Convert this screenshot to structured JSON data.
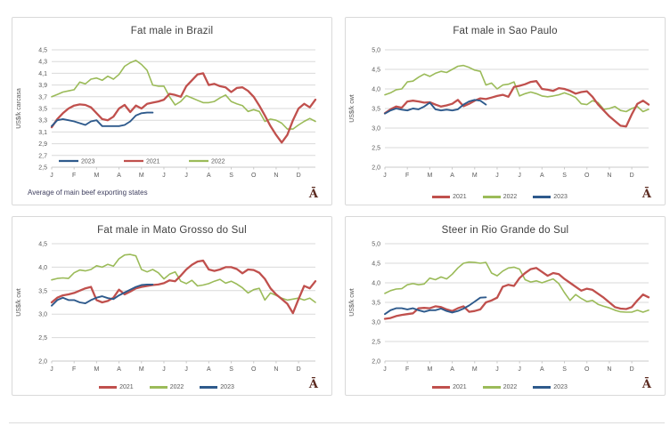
{
  "colors": {
    "red": "#C0504D",
    "green": "#9BBB59",
    "blue": "#2E5A8C",
    "grid": "#DADADA",
    "axis": "#C9C9C9",
    "axis_text": "#595959",
    "title_text": "#404040",
    "footnote_text": "#3F3F5F",
    "logo": "#5B2A20"
  },
  "chart_data": [
    {
      "type": "line",
      "title": "Fat male in Brazil",
      "ylabel": "US$/k carcasa",
      "footnote": "Average  of main beef exporting states",
      "logo_glyph": "Ā",
      "x_labels": [
        "J",
        "F",
        "M",
        "A",
        "M",
        "J",
        "J",
        "A",
        "S",
        "O",
        "N",
        "D"
      ],
      "ylim": [
        2.5,
        4.5
      ],
      "ytick_labels": [
        "4,5",
        "4,3",
        "4,1",
        "3,9",
        "3,7",
        "3,5",
        "3,3",
        "3,1",
        "2,9",
        "2,7",
        "2,5"
      ],
      "legend_position": "inside",
      "legend": [
        {
          "label": "2023",
          "color": "blue"
        },
        {
          "label": "2021",
          "color": "red"
        },
        {
          "label": "2022",
          "color": "green"
        }
      ],
      "series": [
        {
          "name": "2022",
          "color": "green",
          "width": 1.6,
          "values": [
            3.7,
            3.74,
            3.78,
            3.8,
            3.82,
            3.95,
            3.92,
            4.0,
            4.02,
            3.98,
            4.05,
            4.0,
            4.08,
            4.22,
            4.28,
            4.32,
            4.25,
            4.15,
            3.9,
            3.88,
            3.88,
            3.7,
            3.56,
            3.62,
            3.72,
            3.68,
            3.64,
            3.6,
            3.6,
            3.62,
            3.68,
            3.73,
            3.62,
            3.58,
            3.55,
            3.45,
            3.48,
            3.45,
            3.28,
            3.32,
            3.3,
            3.25,
            3.15,
            3.15,
            3.22,
            3.28,
            3.33,
            3.28
          ]
        },
        {
          "name": "2021",
          "color": "red",
          "width": 2.3,
          "values": [
            3.18,
            3.32,
            3.42,
            3.5,
            3.55,
            3.57,
            3.56,
            3.52,
            3.42,
            3.32,
            3.3,
            3.36,
            3.5,
            3.56,
            3.44,
            3.55,
            3.5,
            3.58,
            3.6,
            3.62,
            3.65,
            3.75,
            3.73,
            3.7,
            3.88,
            3.98,
            4.08,
            4.1,
            3.9,
            3.92,
            3.88,
            3.86,
            3.78,
            3.85,
            3.86,
            3.8,
            3.7,
            3.55,
            3.38,
            3.2,
            3.05,
            2.92,
            3.05,
            3.3,
            3.5,
            3.58,
            3.52,
            3.65
          ]
        },
        {
          "name": "2023",
          "color": "blue",
          "width": 1.9,
          "values": [
            3.2,
            3.3,
            3.32,
            3.3,
            3.28,
            3.25,
            3.22,
            3.28,
            3.3,
            3.2,
            3.2,
            3.2,
            3.2,
            3.22,
            3.28,
            3.38,
            3.42,
            3.43,
            3.43
          ]
        }
      ]
    },
    {
      "type": "line",
      "title": "Fat male in Sao Paulo",
      "ylabel": "US$/k cwt",
      "logo_glyph": "Ā",
      "x_labels": [
        "J",
        "F",
        "M",
        "A",
        "M",
        "J",
        "J",
        "A",
        "S",
        "O",
        "N",
        "D"
      ],
      "ylim": [
        2.0,
        5.0
      ],
      "ytick_labels": [
        "5,0",
        "4,5",
        "4,0",
        "3,5",
        "3,0",
        "2,5",
        "2,0"
      ],
      "legend_position": "below",
      "legend": [
        {
          "label": "2021",
          "color": "red"
        },
        {
          "label": "2022",
          "color": "green"
        },
        {
          "label": "2023",
          "color": "blue"
        }
      ],
      "series": [
        {
          "name": "2022",
          "color": "green",
          "width": 1.6,
          "values": [
            3.85,
            3.9,
            3.98,
            4.0,
            4.18,
            4.2,
            4.3,
            4.38,
            4.32,
            4.4,
            4.45,
            4.42,
            4.5,
            4.58,
            4.6,
            4.55,
            4.48,
            4.45,
            4.1,
            4.15,
            4.0,
            4.1,
            4.12,
            4.18,
            3.82,
            3.88,
            3.92,
            3.88,
            3.82,
            3.8,
            3.82,
            3.85,
            3.9,
            3.85,
            3.78,
            3.62,
            3.6,
            3.7,
            3.65,
            3.48,
            3.5,
            3.55,
            3.45,
            3.42,
            3.5,
            3.55,
            3.42,
            3.48
          ]
        },
        {
          "name": "2021",
          "color": "red",
          "width": 2.3,
          "values": [
            3.38,
            3.48,
            3.55,
            3.52,
            3.68,
            3.7,
            3.68,
            3.65,
            3.66,
            3.6,
            3.55,
            3.58,
            3.62,
            3.72,
            3.56,
            3.62,
            3.7,
            3.76,
            3.74,
            3.78,
            3.82,
            3.85,
            3.8,
            4.05,
            4.08,
            4.12,
            4.18,
            4.2,
            4.0,
            3.98,
            3.95,
            4.02,
            4.0,
            3.95,
            3.88,
            3.92,
            3.94,
            3.8,
            3.6,
            3.45,
            3.3,
            3.18,
            3.06,
            3.04,
            3.35,
            3.62,
            3.7,
            3.6
          ]
        },
        {
          "name": "2023",
          "color": "blue",
          "width": 1.9,
          "values": [
            3.37,
            3.45,
            3.5,
            3.47,
            3.45,
            3.5,
            3.48,
            3.55,
            3.65,
            3.48,
            3.45,
            3.47,
            3.45,
            3.48,
            3.6,
            3.68,
            3.72,
            3.7,
            3.6
          ]
        }
      ]
    },
    {
      "type": "line",
      "title": "Fat male in Mato Grosso do Sul",
      "ylabel": "US$/k cwt",
      "logo_glyph": "Ā",
      "x_labels": [
        "J",
        "F",
        "M",
        "A",
        "M",
        "J",
        "J",
        "A",
        "S",
        "O",
        "N",
        "D"
      ],
      "ylim": [
        2.0,
        4.5
      ],
      "ytick_labels": [
        "4,5",
        "4,0",
        "3,5",
        "3,0",
        "2,5",
        "2,0"
      ],
      "legend_position": "below",
      "legend": [
        {
          "label": "2021",
          "color": "red"
        },
        {
          "label": "2022",
          "color": "green"
        },
        {
          "label": "2023",
          "color": "blue"
        }
      ],
      "series": [
        {
          "name": "2022",
          "color": "green",
          "width": 1.6,
          "values": [
            3.73,
            3.76,
            3.77,
            3.76,
            3.88,
            3.94,
            3.92,
            3.95,
            4.03,
            4.0,
            4.06,
            4.02,
            4.18,
            4.26,
            4.27,
            4.24,
            3.95,
            3.9,
            3.95,
            3.88,
            3.75,
            3.85,
            3.9,
            3.7,
            3.65,
            3.72,
            3.6,
            3.62,
            3.65,
            3.7,
            3.74,
            3.66,
            3.7,
            3.64,
            3.56,
            3.45,
            3.52,
            3.55,
            3.3,
            3.45,
            3.4,
            3.34,
            3.3,
            3.32,
            3.34,
            3.3,
            3.34,
            3.25
          ]
        },
        {
          "name": "2021",
          "color": "red",
          "width": 2.3,
          "values": [
            3.25,
            3.35,
            3.4,
            3.42,
            3.45,
            3.5,
            3.55,
            3.58,
            3.3,
            3.25,
            3.28,
            3.35,
            3.52,
            3.42,
            3.48,
            3.55,
            3.58,
            3.6,
            3.62,
            3.63,
            3.66,
            3.72,
            3.7,
            3.82,
            3.95,
            4.05,
            4.12,
            4.14,
            3.95,
            3.92,
            3.95,
            4.0,
            4.0,
            3.96,
            3.87,
            3.95,
            3.94,
            3.88,
            3.75,
            3.55,
            3.42,
            3.32,
            3.22,
            3.02,
            3.32,
            3.6,
            3.55,
            3.7
          ]
        },
        {
          "name": "2023",
          "color": "blue",
          "width": 1.9,
          "values": [
            3.18,
            3.3,
            3.35,
            3.3,
            3.3,
            3.25,
            3.23,
            3.3,
            3.35,
            3.38,
            3.34,
            3.32,
            3.4,
            3.46,
            3.52,
            3.58,
            3.62,
            3.63,
            3.63
          ]
        }
      ]
    },
    {
      "type": "line",
      "title": "Steer  in Rio Grande do Sul",
      "ylabel": "US$/k cwt",
      "logo_glyph": "Ā",
      "x_labels": [
        "J",
        "F",
        "M",
        "A",
        "M",
        "J",
        "J",
        "A",
        "S",
        "O",
        "N",
        "D"
      ],
      "ylim": [
        2.0,
        5.0
      ],
      "ytick_labels": [
        "5,0",
        "4,5",
        "4,0",
        "3,5",
        "3,0",
        "2,5",
        "2,0"
      ],
      "legend_position": "below",
      "legend": [
        {
          "label": "2021",
          "color": "red"
        },
        {
          "label": "2022",
          "color": "green"
        },
        {
          "label": "2023",
          "color": "blue"
        }
      ],
      "series": [
        {
          "name": "2022",
          "color": "green",
          "width": 1.6,
          "values": [
            3.73,
            3.8,
            3.84,
            3.85,
            3.95,
            3.98,
            3.95,
            3.97,
            4.12,
            4.08,
            4.15,
            4.1,
            4.22,
            4.38,
            4.5,
            4.53,
            4.52,
            4.5,
            4.52,
            4.25,
            4.18,
            4.3,
            4.38,
            4.4,
            4.35,
            4.08,
            4.02,
            4.05,
            4.0,
            4.05,
            4.1,
            3.98,
            3.75,
            3.55,
            3.7,
            3.6,
            3.52,
            3.55,
            3.45,
            3.4,
            3.36,
            3.3,
            3.26,
            3.25,
            3.25,
            3.3,
            3.25,
            3.3
          ]
        },
        {
          "name": "2021",
          "color": "red",
          "width": 2.3,
          "values": [
            3.08,
            3.1,
            3.15,
            3.18,
            3.2,
            3.22,
            3.35,
            3.36,
            3.35,
            3.4,
            3.38,
            3.32,
            3.28,
            3.35,
            3.4,
            3.26,
            3.28,
            3.32,
            3.5,
            3.55,
            3.62,
            3.9,
            3.95,
            3.92,
            4.12,
            4.25,
            4.35,
            4.38,
            4.28,
            4.18,
            4.25,
            4.22,
            4.1,
            4.0,
            3.9,
            3.8,
            3.85,
            3.82,
            3.72,
            3.62,
            3.5,
            3.38,
            3.34,
            3.33,
            3.38,
            3.55,
            3.7,
            3.63
          ]
        },
        {
          "name": "2023",
          "color": "blue",
          "width": 1.9,
          "values": [
            3.2,
            3.3,
            3.35,
            3.35,
            3.32,
            3.35,
            3.3,
            3.26,
            3.3,
            3.3,
            3.34,
            3.28,
            3.24,
            3.28,
            3.34,
            3.42,
            3.52,
            3.62,
            3.63
          ]
        }
      ]
    }
  ]
}
